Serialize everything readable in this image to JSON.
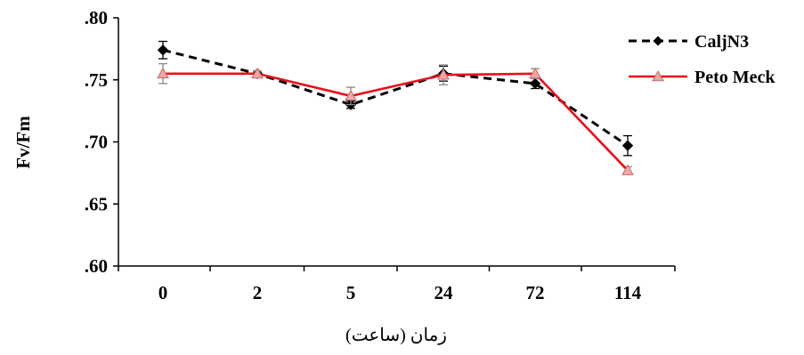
{
  "chart_data": {
    "type": "line",
    "title": "",
    "xlabel": "زمان (ساعت)",
    "ylabel": "Fv/Fm",
    "categories": [
      "0",
      "2",
      "5",
      "24",
      "72",
      "114"
    ],
    "ylim": [
      0.6,
      0.8
    ],
    "yticks": [
      ".80",
      ".75",
      ".70",
      ".65",
      ".60"
    ],
    "grid": false,
    "legend_position": "top-right",
    "series": [
      {
        "name": "CaljN3",
        "values": [
          0.774,
          0.755,
          0.73,
          0.755,
          0.747,
          0.697
        ],
        "errors": [
          0.007,
          0.002,
          0.003,
          0.006,
          0.004,
          0.008
        ],
        "color": "#000000",
        "line_style": "dashed",
        "marker": "diamond"
      },
      {
        "name": "Peto Meck",
        "values": [
          0.755,
          0.755,
          0.737,
          0.754,
          0.755,
          0.677
        ],
        "errors": [
          0.008,
          0.002,
          0.007,
          0.008,
          0.004,
          0.003
        ],
        "color": "#e8101a",
        "marker_color": "#f3a7a7",
        "line_style": "solid",
        "marker": "triangle"
      }
    ]
  }
}
